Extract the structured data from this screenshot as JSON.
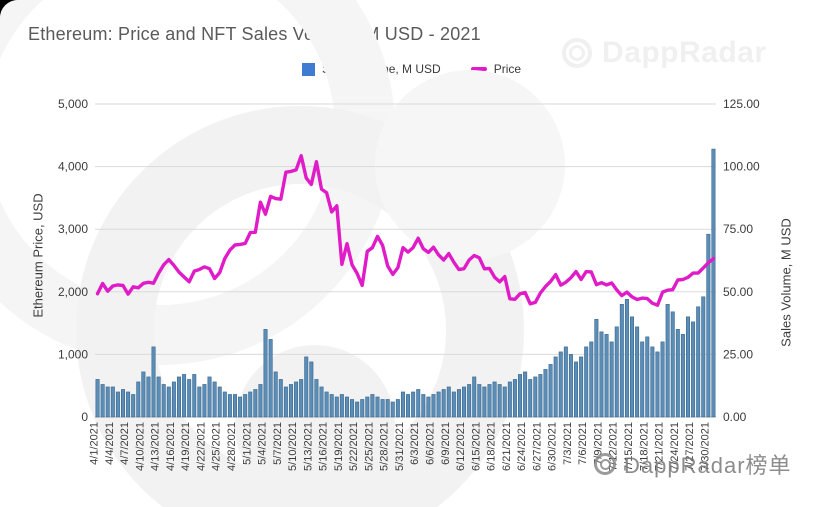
{
  "title": "Ethereum: Price and NFT Sales Volume, M USD - 2021",
  "legend": {
    "volume_label": "Sales Volume, M USD",
    "price_label": "Price",
    "volume_color": "#3d7cd0",
    "price_color": "#e01bc8"
  },
  "left_axis": {
    "title": "Ethereum Price, USD",
    "ticks": [
      "0",
      "1,000",
      "2,000",
      "3,000",
      "4,000",
      "5,000"
    ],
    "tick_values": [
      0,
      1000,
      2000,
      3000,
      4000,
      5000
    ]
  },
  "right_axis": {
    "title": "Sales Volume, M USD",
    "ticks": [
      "0.00",
      "25.00",
      "50.00",
      "75.00",
      "100.00",
      "125.00"
    ],
    "tick_values": [
      0,
      25,
      50,
      75,
      100,
      125
    ]
  },
  "watermarks": {
    "top_right": "DappRadar",
    "bottom_right": "DappRadar榜单"
  },
  "colors": {
    "bar_fill": "#5b8db6",
    "bar_stroke": "#39688f",
    "line": "#e01bc8",
    "gridline": "#dadada",
    "baseline": "#bdbdbd",
    "tick_text": "#3c3c3c"
  },
  "chart_data": {
    "type": "bar+line combo",
    "title": "Ethereum: Price and NFT Sales Volume, M USD - 2021",
    "x_tick_every": 3,
    "left_ylim": [
      0,
      5000
    ],
    "right_ylim": [
      0,
      125
    ],
    "grid": true,
    "legend_position": "top",
    "x": [
      "4/1/2021",
      "4/2/2021",
      "4/3/2021",
      "4/4/2021",
      "4/5/2021",
      "4/6/2021",
      "4/7/2021",
      "4/8/2021",
      "4/9/2021",
      "4/10/2021",
      "4/11/2021",
      "4/12/2021",
      "4/13/2021",
      "4/14/2021",
      "4/15/2021",
      "4/16/2021",
      "4/17/2021",
      "4/18/2021",
      "4/19/2021",
      "4/20/2021",
      "4/21/2021",
      "4/22/2021",
      "4/23/2021",
      "4/24/2021",
      "4/25/2021",
      "4/26/2021",
      "4/27/2021",
      "4/28/2021",
      "4/29/2021",
      "4/30/2021",
      "5/1/2021",
      "5/2/2021",
      "5/3/2021",
      "5/4/2021",
      "5/5/2021",
      "5/6/2021",
      "5/7/2021",
      "5/8/2021",
      "5/9/2021",
      "5/10/2021",
      "5/11/2021",
      "5/12/2021",
      "5/13/2021",
      "5/14/2021",
      "5/15/2021",
      "5/16/2021",
      "5/17/2021",
      "5/18/2021",
      "5/19/2021",
      "5/20/2021",
      "5/21/2021",
      "5/22/2021",
      "5/23/2021",
      "5/24/2021",
      "5/25/2021",
      "5/26/2021",
      "5/27/2021",
      "5/28/2021",
      "5/29/2021",
      "5/30/2021",
      "5/31/2021",
      "6/1/2021",
      "6/2/2021",
      "6/3/2021",
      "6/4/2021",
      "6/5/2021",
      "6/6/2021",
      "6/7/2021",
      "6/8/2021",
      "6/9/2021",
      "6/10/2021",
      "6/11/2021",
      "6/12/2021",
      "6/13/2021",
      "6/14/2021",
      "6/15/2021",
      "6/16/2021",
      "6/17/2021",
      "6/18/2021",
      "6/19/2021",
      "6/20/2021",
      "6/21/2021",
      "6/22/2021",
      "6/23/2021",
      "6/24/2021",
      "6/25/2021",
      "6/26/2021",
      "6/27/2021",
      "6/28/2021",
      "6/29/2021",
      "6/30/2021",
      "7/1/2021",
      "7/2/2021",
      "7/3/2021",
      "7/4/2021",
      "7/5/2021",
      "7/6/2021",
      "7/7/2021",
      "7/8/2021",
      "7/9/2021",
      "7/10/2021",
      "7/11/2021",
      "7/12/2021",
      "7/13/2021",
      "7/14/2021",
      "7/15/2021",
      "7/16/2021",
      "7/17/2021",
      "7/18/2021",
      "7/19/2021",
      "7/20/2021",
      "7/21/2021",
      "7/22/2021",
      "7/23/2021",
      "7/24/2021",
      "7/25/2021",
      "7/26/2021",
      "7/27/2021",
      "7/28/2021",
      "7/29/2021",
      "7/30/2021",
      "7/31/2021"
    ],
    "series": [
      {
        "name": "Sales Volume, M USD",
        "type": "bar",
        "axis": "right",
        "values": [
          15,
          13,
          12,
          12,
          10,
          11,
          10,
          9,
          14,
          18,
          16,
          28,
          16,
          13,
          12,
          14,
          16,
          17,
          15,
          17,
          12,
          13,
          16,
          14,
          12,
          10,
          9,
          9,
          8,
          9,
          10,
          11,
          13,
          35,
          31,
          18,
          15,
          12,
          13,
          14,
          15,
          24,
          22,
          15,
          12,
          10,
          9,
          8,
          9,
          8,
          7,
          6,
          7,
          8,
          9,
          8,
          7,
          7,
          6,
          7,
          10,
          9,
          10,
          11,
          9,
          8,
          9,
          10,
          11,
          12,
          10,
          11,
          12,
          13,
          16,
          13,
          12,
          13,
          14,
          13,
          12,
          14,
          15,
          17,
          18,
          15,
          16,
          17,
          19,
          21,
          24,
          26,
          28,
          25,
          22,
          24,
          28,
          30,
          39,
          34,
          33,
          30,
          36,
          45,
          47,
          40,
          36,
          30,
          32,
          28,
          26,
          30,
          45,
          42,
          35,
          33,
          40,
          38,
          44,
          48,
          73,
          107
        ]
      },
      {
        "name": "Price",
        "type": "line",
        "axis": "left",
        "values": [
          1969,
          2133,
          2009,
          2092,
          2111,
          2101,
          1963,
          2080,
          2064,
          2136,
          2151,
          2138,
          2299,
          2432,
          2514,
          2422,
          2314,
          2236,
          2159,
          2330,
          2357,
          2397,
          2369,
          2213,
          2307,
          2532,
          2666,
          2747,
          2757,
          2773,
          2945,
          2951,
          3431,
          3240,
          3524,
          3489,
          3480,
          3910,
          3924,
          3947,
          4174,
          3820,
          3715,
          4078,
          3641,
          3581,
          3277,
          3374,
          2439,
          2768,
          2430,
          2294,
          2102,
          2647,
          2705,
          2885,
          2742,
          2412,
          2278,
          2386,
          2706,
          2634,
          2706,
          2857,
          2688,
          2629,
          2712,
          2590,
          2508,
          2610,
          2472,
          2354,
          2369,
          2508,
          2580,
          2543,
          2368,
          2373,
          2234,
          2160,
          2243,
          1888,
          1880,
          1968,
          1989,
          1809,
          1830,
          1981,
          2084,
          2166,
          2275,
          2107,
          2152,
          2226,
          2322,
          2197,
          2322,
          2316,
          2115,
          2146,
          2111,
          2140,
          2031,
          1940,
          1995,
          1919,
          1877,
          1900,
          1891,
          1818,
          1786,
          1996,
          2025,
          2034,
          2189,
          2197,
          2231,
          2299,
          2300,
          2382,
          2465,
          2530
        ]
      }
    ]
  }
}
